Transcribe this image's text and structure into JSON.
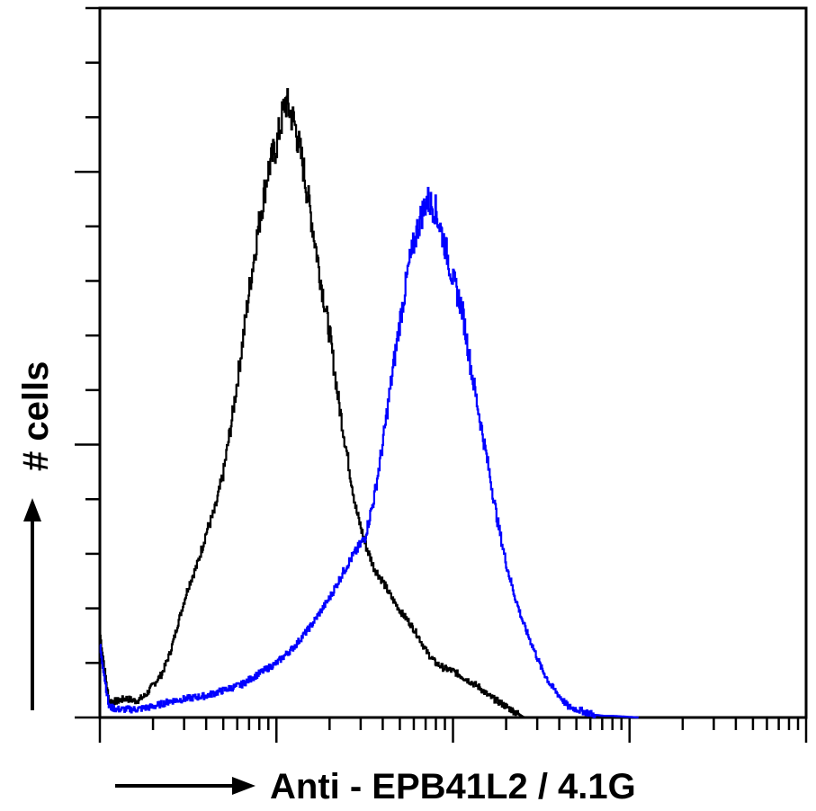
{
  "chart_data": {
    "type": "line",
    "title": "",
    "xlabel": "Anti - EPB41L2 / 4.1G",
    "ylabel": "# cells",
    "x_scale": "log",
    "xlim": [
      1,
      10000
    ],
    "ylim": [
      0,
      130
    ],
    "x_minor_ticks": [
      1,
      2,
      3,
      4,
      5,
      6,
      7,
      8,
      9,
      10,
      20,
      30,
      40,
      50,
      60,
      70,
      80,
      90,
      100,
      200,
      300,
      400,
      500,
      600,
      700,
      800,
      900,
      1000,
      2000,
      3000,
      4000,
      5000,
      6000,
      7000,
      8000,
      9000,
      10000
    ],
    "x_major_ticks": [
      1,
      10,
      100,
      1000,
      10000
    ],
    "y_ticks": [
      0,
      10,
      20,
      30,
      40,
      50,
      60,
      70,
      80,
      90,
      100,
      110,
      120,
      130
    ],
    "y_major_ticks": [
      0,
      50,
      100
    ],
    "grid": false,
    "legend": "none",
    "colors": {
      "control": "#000000",
      "stained": "#0000ff",
      "axis": "#000000"
    },
    "series": [
      {
        "color": "#000000",
        "x": [
          1.0,
          1.12,
          1.25,
          1.4,
          1.6,
          1.8,
          2.0,
          2.24,
          2.5,
          2.8,
          3.16,
          3.55,
          4.0,
          4.47,
          5.0,
          5.6,
          6.3,
          7.1,
          7.9,
          8.9,
          10.0,
          11.2,
          12.6,
          14.1,
          15.8,
          17.8,
          20.0,
          22.4,
          25.1,
          28.2,
          31.6,
          35.5,
          39.8,
          44.7,
          50.1,
          56.2,
          63.1,
          70.8,
          79.4,
          89.1,
          100,
          112,
          126,
          141,
          158,
          178,
          200,
          224,
          251
        ],
        "y": [
          15.0,
          3.0,
          3.0,
          3.5,
          3.0,
          4.0,
          6.0,
          8.0,
          12.0,
          18.0,
          24.0,
          28.0,
          34.0,
          38.0,
          45.0,
          55.0,
          67.0,
          80.0,
          90.0,
          100.0,
          105.0,
          113.0,
          109.0,
          101.0,
          91.0,
          80.0,
          70.0,
          58.0,
          48.0,
          38.0,
          32.0,
          27.5,
          25.0,
          22.0,
          19.5,
          17.5,
          15.0,
          12.0,
          10.0,
          9.0,
          8.5,
          7.5,
          6.5,
          5.5,
          4.0,
          3.0,
          2.0,
          1.0,
          0.0
        ]
      },
      {
        "color": "#0000ff",
        "x": [
          1.0,
          1.12,
          1.25,
          1.6,
          2.0,
          2.5,
          3.16,
          4.0,
          5.0,
          6.3,
          7.9,
          10.0,
          12.6,
          15.8,
          20.0,
          25.1,
          31.6,
          35.5,
          39.8,
          44.7,
          50.1,
          56.2,
          63.1,
          70.8,
          79.4,
          89.1,
          100,
          112,
          126,
          141,
          158,
          178,
          200,
          224,
          251,
          282,
          316,
          355,
          398,
          447,
          501,
          562,
          631,
          708,
          794,
          891,
          1000,
          1122
        ],
        "y": [
          13.0,
          2.0,
          1.5,
          1.5,
          2.0,
          3.0,
          3.5,
          4.0,
          5.0,
          6.0,
          8.0,
          10.0,
          13.0,
          17.0,
          22.0,
          28.0,
          33.0,
          40.0,
          50.0,
          62.0,
          73.0,
          83.0,
          90.0,
          95.0,
          93.0,
          87.0,
          80.0,
          75.0,
          64.0,
          55.0,
          46.0,
          36.0,
          28.0,
          22.0,
          17.0,
          13.0,
          9.0,
          6.0,
          4.0,
          2.0,
          1.5,
          1.0,
          0.5,
          0.3,
          0.3,
          0.2,
          0.1,
          0.0
        ]
      }
    ]
  }
}
